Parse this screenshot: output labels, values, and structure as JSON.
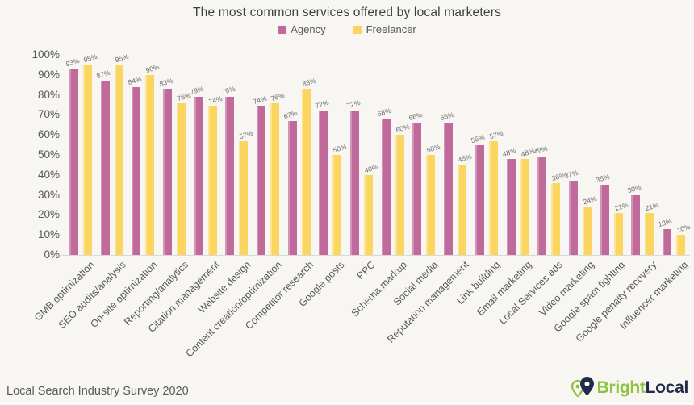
{
  "title": "The most common services offered by local marketers",
  "footer": {
    "source": "Local Search Industry Survey 2020",
    "brand_bright": "Bright",
    "brand_local": "Local",
    "brand_colors": {
      "bright": "#8dc23f",
      "local": "#1e2b49"
    }
  },
  "chart_data": {
    "type": "bar",
    "title": "The most common services offered by local marketers",
    "categories": [
      "GMB optimization",
      "SEO audits/analysis",
      "On-site optimization",
      "Reporting/analytics",
      "Citation management",
      "Website design",
      "Content creation/optimization",
      "Competitor research",
      "Google posts",
      "PPC",
      "Schema markup",
      "Social media",
      "Reputation management",
      "Link building",
      "Email marketing",
      "Local Services ads",
      "Video marketing",
      "Google spam fighting",
      "Google penalty recovery",
      "Influencer marketing"
    ],
    "series": [
      {
        "name": "Agency",
        "color": "#c0699b",
        "highlight": "#d494ba",
        "values": [
          93,
          87,
          84,
          83,
          79,
          79,
          74,
          67,
          72,
          72,
          68,
          66,
          66,
          55,
          48,
          49,
          37,
          35,
          30,
          13
        ]
      },
      {
        "name": "Freelancer",
        "color": "#fad55f",
        "highlight": "#fce492",
        "values": [
          95,
          95,
          90,
          76,
          74,
          57,
          76,
          83,
          50,
          40,
          60,
          50,
          45,
          57,
          48,
          36,
          24,
          21,
          21,
          10
        ]
      }
    ],
    "xlabel": "",
    "ylabel": "",
    "ylim": [
      0,
      100
    ],
    "yticks": [
      "0%",
      "10%",
      "20%",
      "30%",
      "40%",
      "50%",
      "60%",
      "70%",
      "80%",
      "90%",
      "100%"
    ],
    "data_labels": true,
    "data_label_suffix": "%",
    "grid": false,
    "legend_position": "top"
  }
}
